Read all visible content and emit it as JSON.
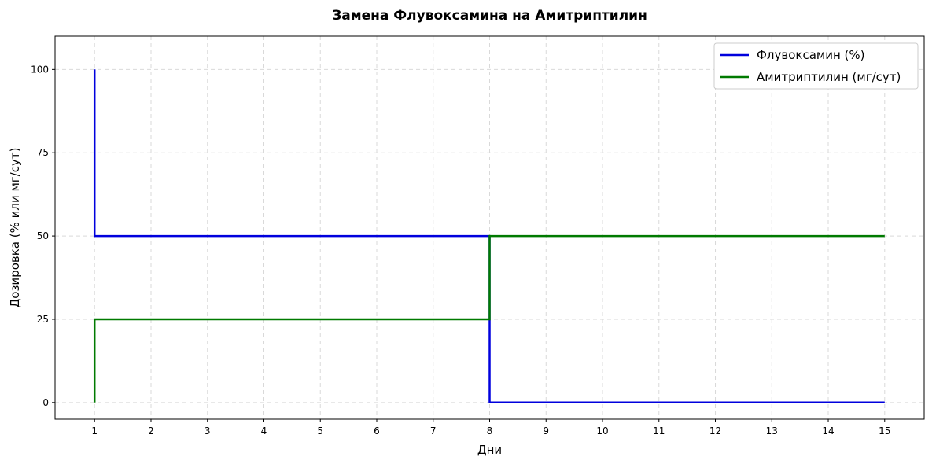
{
  "chart_data": {
    "type": "line",
    "title": "Замена Флувоксамина на Амитриптилин",
    "xlabel": "Дни",
    "ylabel": "Дозировка (% или мг/сут)",
    "xlim": [
      0.3,
      15.7
    ],
    "ylim": [
      -5,
      110
    ],
    "xticks": [
      1,
      2,
      3,
      4,
      5,
      6,
      7,
      8,
      9,
      10,
      11,
      12,
      13,
      14,
      15
    ],
    "yticks": [
      0,
      25,
      50,
      75,
      100
    ],
    "grid": true,
    "legend_position": "top-right",
    "step": "post",
    "series": [
      {
        "name": "Флувоксамин (%)",
        "color": "#0000dd",
        "points": [
          [
            1,
            100
          ],
          [
            1,
            50
          ],
          [
            8,
            50
          ],
          [
            8,
            0
          ],
          [
            15,
            0
          ]
        ]
      },
      {
        "name": "Амитриптилин (мг/сут)",
        "color": "#007a00",
        "points": [
          [
            1,
            0
          ],
          [
            1,
            25
          ],
          [
            8,
            25
          ],
          [
            8,
            50
          ],
          [
            15,
            50
          ]
        ]
      }
    ]
  }
}
